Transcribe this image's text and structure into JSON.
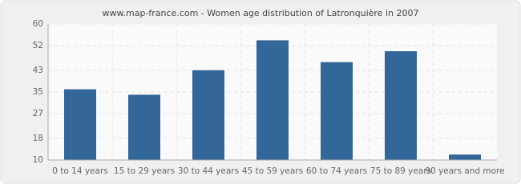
{
  "chart_data": {
    "type": "bar",
    "title": "www.map-france.com - Women age distribution of Latronquière in 2007",
    "categories": [
      "0 to 14 years",
      "15 to 29 years",
      "30 to 44 years",
      "45 to 59 years",
      "60 to 74 years",
      "75 to 89 years",
      "90 years and more"
    ],
    "values": [
      36,
      34,
      43,
      54,
      46,
      50,
      12
    ],
    "color": "#336699",
    "ylim": [
      10,
      60
    ],
    "yticks": [
      10,
      18,
      27,
      35,
      43,
      52,
      60
    ],
    "grid": true
  }
}
